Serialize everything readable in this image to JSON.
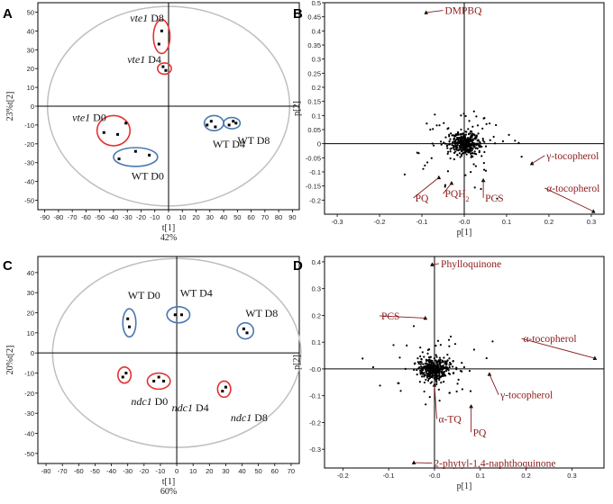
{
  "chart_data": [
    {
      "panel": "A",
      "type": "scatter",
      "xlabel": "t[1]",
      "xlabel2": "42%",
      "ylabel": "23%t[2]",
      "xlim": [
        -95,
        95
      ],
      "ylim": [
        -55,
        55
      ],
      "xticks": [
        -90,
        -80,
        -70,
        -60,
        -50,
        -40,
        -30,
        -20,
        -10,
        0,
        10,
        20,
        30,
        40,
        50,
        60,
        70,
        80,
        90
      ],
      "yticks": [
        -50,
        -40,
        -30,
        -20,
        -10,
        0,
        10,
        20,
        30,
        40,
        50
      ],
      "groups": [
        {
          "label": "vte1 D8",
          "label_parts": [
            "vte1",
            " D8"
          ],
          "italic_first": true,
          "ring": "red",
          "center": [
            -5,
            37
          ],
          "radius": [
            6,
            9
          ],
          "label_pos": [
            -28,
            45
          ],
          "points": [
            [
              -5,
              40
            ],
            [
              -7,
              33
            ]
          ]
        },
        {
          "label": "vte1 D4",
          "label_parts": [
            "vte1",
            " D4"
          ],
          "italic_first": true,
          "ring": "red",
          "center": [
            -3,
            20
          ],
          "radius": [
            5,
            3
          ],
          "label_pos": [
            -30,
            23
          ],
          "points": [
            [
              -4,
              21
            ],
            [
              -2,
              19
            ]
          ]
        },
        {
          "label": "vte1 D0",
          "label_parts": [
            "vte1",
            " D0"
          ],
          "italic_first": true,
          "ring": "red",
          "center": [
            -40,
            -13
          ],
          "radius": [
            12,
            8
          ],
          "label_pos": [
            -70,
            -8
          ],
          "points": [
            [
              -47,
              -14
            ],
            [
              -37,
              -15
            ],
            [
              -31,
              -9
            ]
          ]
        },
        {
          "label": "WT D0",
          "label_parts": [
            "WT D0"
          ],
          "italic_first": false,
          "ring": "blue",
          "center": [
            -24,
            -27
          ],
          "radius": [
            16,
            5
          ],
          "label_pos": [
            -27,
            -39
          ],
          "points": [
            [
              -36,
              -28
            ],
            [
              -24,
              -24
            ],
            [
              -14,
              -26
            ]
          ]
        },
        {
          "label": "WT D4",
          "label_parts": [
            "WT D4"
          ],
          "italic_first": false,
          "ring": "blue",
          "center": [
            33,
            -9
          ],
          "radius": [
            7,
            4
          ],
          "label_pos": [
            32,
            -22
          ],
          "points": [
            [
              28,
              -10
            ],
            [
              31,
              -8
            ],
            [
              34,
              -11
            ]
          ]
        },
        {
          "label": "WT D8",
          "label_parts": [
            "WT D8"
          ],
          "italic_first": false,
          "ring": "blue",
          "center": [
            46,
            -9
          ],
          "radius": [
            6,
            3
          ],
          "label_pos": [
            50,
            -20
          ],
          "points": [
            [
              44,
              -10
            ],
            [
              47,
              -8
            ],
            [
              49,
              -9
            ]
          ]
        }
      ],
      "hotelling_ellipse": {
        "rx": 88,
        "ry": 53
      }
    },
    {
      "panel": "B",
      "type": "scatter",
      "xlabel": "p[1]",
      "ylabel": "p[2]",
      "xlim": [
        -0.33,
        0.33
      ],
      "ylim": [
        -0.25,
        0.5
      ],
      "xticks": [
        -0.3,
        -0.2,
        -0.1,
        -0.0,
        0.1,
        0.2,
        0.3
      ],
      "xtick_labels": [
        "-0.3",
        "-0.2",
        "-0.1",
        "-0.0",
        "0.1",
        "0.2",
        "0.3"
      ],
      "yticks": [
        -0.2,
        -0.15,
        -0.1,
        -0.05,
        0,
        0.05,
        0.1,
        0.15,
        0.2,
        0.25,
        0.3,
        0.35,
        0.4,
        0.45,
        0.5
      ],
      "ytick_labels": [
        "-0.2",
        "-0.15",
        "-0.1",
        "-0.05",
        "0",
        "0.05",
        "0.1",
        "0.15",
        "0.2",
        "0.25",
        "0.3",
        "0.35",
        "0.4",
        "0.45",
        "0.5"
      ],
      "annotations": [
        {
          "label": "DMPBQ",
          "point": [
            -0.09,
            0.465
          ],
          "text_pos": [
            -0.05,
            0.46
          ]
        },
        {
          "label": "γ-tocopherol",
          "point": [
            0.16,
            -0.07
          ],
          "text_pos": [
            0.19,
            -0.055
          ]
        },
        {
          "label": "α-tocopherol",
          "point": [
            0.305,
            -0.24
          ],
          "text_pos": [
            0.19,
            -0.17
          ]
        },
        {
          "label": "PQ",
          "point": [
            -0.06,
            -0.12
          ],
          "text_pos": [
            -0.12,
            -0.205
          ]
        },
        {
          "label": "PQH",
          "label_sub": "2",
          "point": [
            -0.03,
            -0.14
          ],
          "text_pos": [
            -0.05,
            -0.19
          ]
        },
        {
          "label": "PCS",
          "point": [
            0.045,
            -0.13
          ],
          "text_pos": [
            0.045,
            -0.205
          ]
        }
      ],
      "cloud": {
        "center": [
          0.0,
          0.0
        ],
        "count": 420,
        "seed": 7
      }
    },
    {
      "panel": "C",
      "type": "scatter",
      "xlabel": "t[1]",
      "xlabel2": "60%",
      "ylabel": "20%t[2]",
      "xlim": [
        -85,
        75
      ],
      "ylim": [
        -55,
        48
      ],
      "xticks": [
        -80,
        -70,
        -60,
        -50,
        -40,
        -30,
        -20,
        -10,
        0,
        10,
        20,
        30,
        40,
        50,
        60,
        70
      ],
      "yticks": [
        -50,
        -40,
        -30,
        -20,
        -10,
        0,
        10,
        20,
        30,
        40
      ],
      "groups": [
        {
          "label": "WT D0",
          "label_parts": [
            "WT D0"
          ],
          "italic_first": false,
          "ring": "blue",
          "center": [
            -29,
            15
          ],
          "radius": [
            4,
            7
          ],
          "label_pos": [
            -30,
            27
          ],
          "points": [
            [
              -30,
              17
            ],
            [
              -29,
              13
            ]
          ]
        },
        {
          "label": "WT D4",
          "label_parts": [
            "WT D4"
          ],
          "italic_first": false,
          "ring": "blue",
          "center": [
            1,
            19
          ],
          "radius": [
            7,
            4
          ],
          "label_pos": [
            2,
            28
          ],
          "points": [
            [
              -1,
              19
            ],
            [
              3,
              19
            ]
          ]
        },
        {
          "label": "WT D8",
          "label_parts": [
            "WT D8"
          ],
          "italic_first": false,
          "ring": "blue",
          "center": [
            42,
            11
          ],
          "radius": [
            5,
            4
          ],
          "label_pos": [
            42,
            18
          ],
          "points": [
            [
              41,
              12
            ],
            [
              43,
              10
            ]
          ]
        },
        {
          "label": "ndc1 D0",
          "label_parts": [
            "ndc1",
            " D0"
          ],
          "italic_first": true,
          "ring": "red",
          "center": [
            -32,
            -11
          ],
          "radius": [
            4,
            4
          ],
          "label_pos": [
            -28,
            -26
          ],
          "points": [
            [
              -33,
              -12
            ],
            [
              -31,
              -10
            ]
          ]
        },
        {
          "label": "ndc1 D4",
          "label_parts": [
            "ndc1",
            " D4"
          ],
          "italic_first": true,
          "ring": "red",
          "center": [
            -11,
            -14
          ],
          "radius": [
            7,
            4
          ],
          "label_pos": [
            -3,
            -29
          ],
          "points": [
            [
              -14,
              -14
            ],
            [
              -11,
              -12
            ],
            [
              -8,
              -14
            ]
          ]
        },
        {
          "label": "ndc1 D8",
          "label_parts": [
            "ndc1",
            " D8"
          ],
          "italic_first": true,
          "ring": "red",
          "center": [
            29,
            -18
          ],
          "radius": [
            4,
            4
          ],
          "label_pos": [
            33,
            -34
          ],
          "points": [
            [
              28,
              -19
            ],
            [
              30,
              -17
            ]
          ]
        }
      ],
      "hotelling_ellipse": {
        "rx": 76,
        "ry": 47
      }
    },
    {
      "panel": "D",
      "type": "scatter",
      "xlabel": "p[1]",
      "ylabel": "p[2]",
      "xlim": [
        -0.24,
        0.37
      ],
      "ylim": [
        -0.37,
        0.42
      ],
      "xticks": [
        -0.2,
        -0.1,
        -0.0,
        0.1,
        0.2,
        0.3
      ],
      "xtick_labels": [
        "-0.2",
        "-0.1",
        "-0.0",
        "0.1",
        "0.2",
        "0.3"
      ],
      "yticks": [
        -0.3,
        -0.2,
        -0.1,
        -0.0,
        0.1,
        0.2,
        0.3,
        0.4
      ],
      "ytick_labels": [
        "-0.3",
        "-0.2",
        "-0.1",
        "-0.0",
        "0.1",
        "0.2",
        "0.3",
        "0.4"
      ],
      "annotations": [
        {
          "label": "Phylloquinone",
          "point": [
            -0.005,
            0.39
          ],
          "text_pos": [
            0.01,
            0.38
          ]
        },
        {
          "label": "PCS",
          "point": [
            -0.02,
            0.19
          ],
          "text_pos": [
            -0.12,
            0.185
          ]
        },
        {
          "label": "α-tocopherol",
          "point": [
            0.35,
            0.04
          ],
          "text_pos": [
            0.19,
            0.1
          ]
        },
        {
          "label": "γ-tocopherol",
          "point": [
            0.12,
            -0.02
          ],
          "text_pos": [
            0.14,
            -0.11
          ]
        },
        {
          "label": "α-TQ",
          "point": [
            0.0,
            -0.06
          ],
          "text_pos": [
            0.005,
            -0.2
          ]
        },
        {
          "label": "PQ",
          "point": [
            0.08,
            -0.14
          ],
          "text_pos": [
            0.08,
            -0.25
          ]
        },
        {
          "label": "2-phytyl-1,4-naphthoquinone",
          "point": [
            -0.045,
            -0.35
          ],
          "text_pos": [
            -0.005,
            -0.365
          ]
        }
      ],
      "cloud": {
        "center": [
          0.0,
          0.0
        ],
        "count": 420,
        "seed": 11
      }
    }
  ]
}
